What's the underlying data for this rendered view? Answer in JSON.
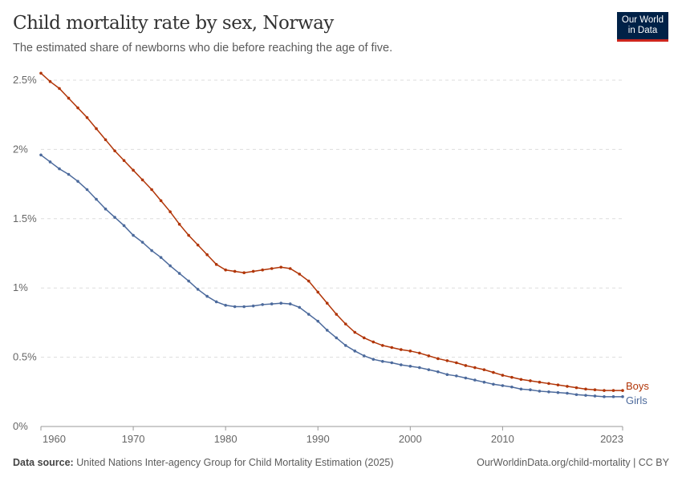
{
  "header": {
    "title": "Child mortality rate by sex, Norway",
    "subtitle": "The estimated share of newborns who die before reaching the age of five.",
    "logo": "Our World in Data"
  },
  "footer": {
    "source_label": "Data source:",
    "source": "United Nations Inter-agency Group for Child Mortality Estimation (2025)",
    "url": "OurWorldinData.org/child-mortality | CC BY"
  },
  "chart_data": {
    "type": "line",
    "title": "Child mortality rate by sex, Norway",
    "xlim": [
      1960,
      2023
    ],
    "ylim": [
      0,
      2.5
    ],
    "x_ticks": [
      "1960",
      "1970",
      "1980",
      "1990",
      "2000",
      "2010",
      "2023"
    ],
    "y_ticks": [
      "0%",
      "0.5%",
      "1%",
      "1.5%",
      "2%",
      "2.5%"
    ],
    "grid": "horizontal dashed",
    "legend": "inline-right",
    "x": [
      1960,
      1961,
      1962,
      1963,
      1964,
      1965,
      1966,
      1967,
      1968,
      1969,
      1970,
      1971,
      1972,
      1973,
      1974,
      1975,
      1976,
      1977,
      1978,
      1979,
      1980,
      1981,
      1982,
      1983,
      1984,
      1985,
      1986,
      1987,
      1988,
      1989,
      1990,
      1991,
      1992,
      1993,
      1994,
      1995,
      1996,
      1997,
      1998,
      1999,
      2000,
      2001,
      2002,
      2003,
      2004,
      2005,
      2006,
      2007,
      2008,
      2009,
      2010,
      2011,
      2012,
      2013,
      2014,
      2015,
      2016,
      2017,
      2018,
      2019,
      2020,
      2021,
      2022,
      2023
    ],
    "series": [
      {
        "name": "Boys",
        "color": "#b13507",
        "values": [
          2.55,
          2.49,
          2.44,
          2.37,
          2.3,
          2.23,
          2.15,
          2.07,
          1.99,
          1.92,
          1.85,
          1.78,
          1.71,
          1.63,
          1.55,
          1.46,
          1.38,
          1.31,
          1.24,
          1.17,
          1.13,
          1.12,
          1.11,
          1.12,
          1.13,
          1.14,
          1.15,
          1.14,
          1.1,
          1.05,
          0.97,
          0.89,
          0.81,
          0.74,
          0.68,
          0.64,
          0.61,
          0.585,
          0.57,
          0.555,
          0.545,
          0.53,
          0.51,
          0.49,
          0.475,
          0.46,
          0.44,
          0.425,
          0.41,
          0.39,
          0.37,
          0.355,
          0.34,
          0.33,
          0.32,
          0.31,
          0.3,
          0.29,
          0.28,
          0.27,
          0.265,
          0.26,
          0.26,
          0.26
        ]
      },
      {
        "name": "Girls",
        "color": "#4c6a9c",
        "values": [
          1.96,
          1.91,
          1.86,
          1.82,
          1.77,
          1.71,
          1.64,
          1.57,
          1.51,
          1.45,
          1.38,
          1.33,
          1.27,
          1.22,
          1.16,
          1.105,
          1.05,
          0.99,
          0.94,
          0.9,
          0.875,
          0.865,
          0.865,
          0.87,
          0.88,
          0.885,
          0.89,
          0.885,
          0.86,
          0.81,
          0.76,
          0.695,
          0.64,
          0.585,
          0.545,
          0.51,
          0.485,
          0.47,
          0.46,
          0.445,
          0.435,
          0.425,
          0.41,
          0.395,
          0.375,
          0.365,
          0.35,
          0.335,
          0.32,
          0.305,
          0.295,
          0.285,
          0.27,
          0.265,
          0.255,
          0.25,
          0.245,
          0.24,
          0.23,
          0.225,
          0.22,
          0.215,
          0.215,
          0.215
        ]
      }
    ]
  }
}
